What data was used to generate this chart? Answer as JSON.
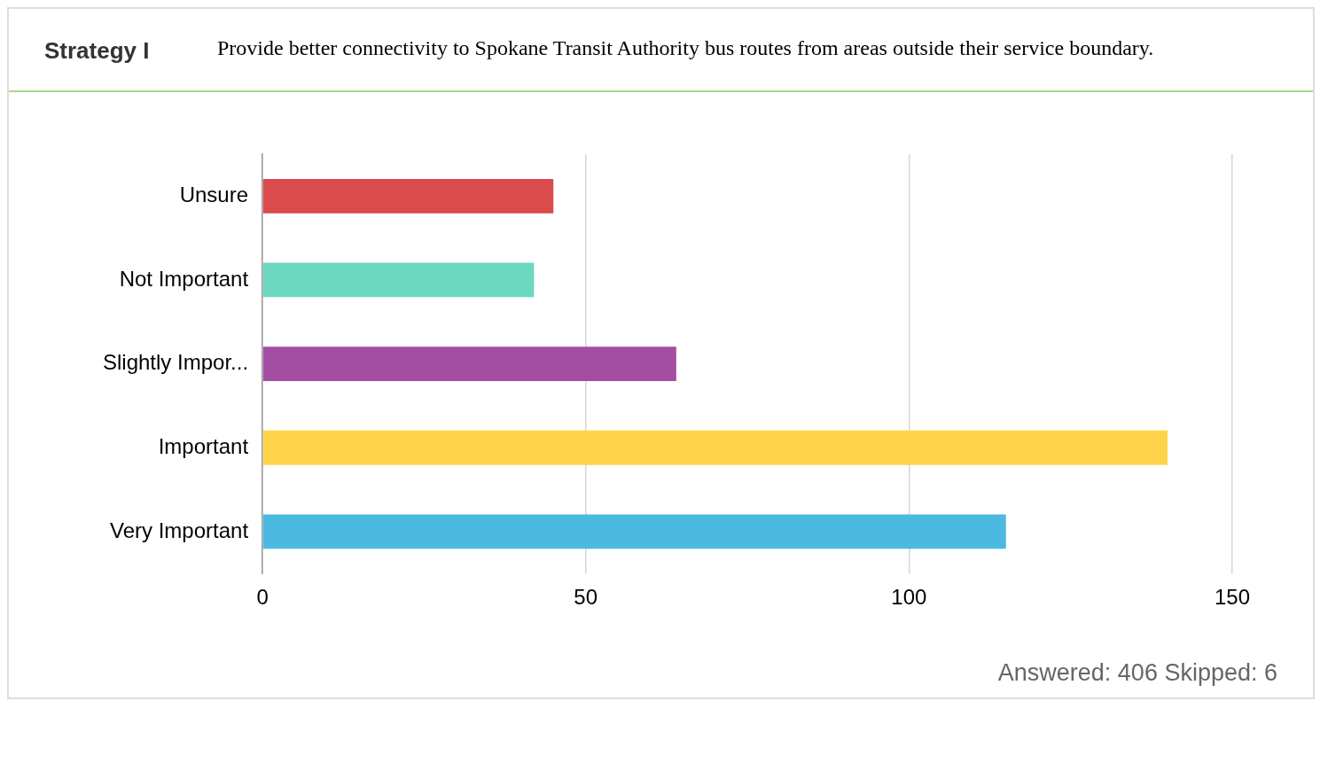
{
  "chart_data": {
    "type": "bar",
    "orientation": "horizontal",
    "title": "Strategy I",
    "subtitle": "Provide better connectivity to Spokane Transit Authority bus routes from areas outside their service boundary.",
    "categories": [
      "Unsure",
      "Not Important",
      "Slightly Impor...",
      "Important",
      "Very Important"
    ],
    "values": [
      45,
      42,
      64,
      140,
      115
    ],
    "colors": [
      "#d94b4c",
      "#6bd8bf",
      "#a34ea1",
      "#ffd44a",
      "#4cb9e1"
    ],
    "xlim": [
      0,
      150
    ],
    "xticks": [
      0,
      50,
      100,
      150
    ],
    "grid": "x",
    "annotations": [
      "Answered: 406  Skipped: 6"
    ]
  }
}
